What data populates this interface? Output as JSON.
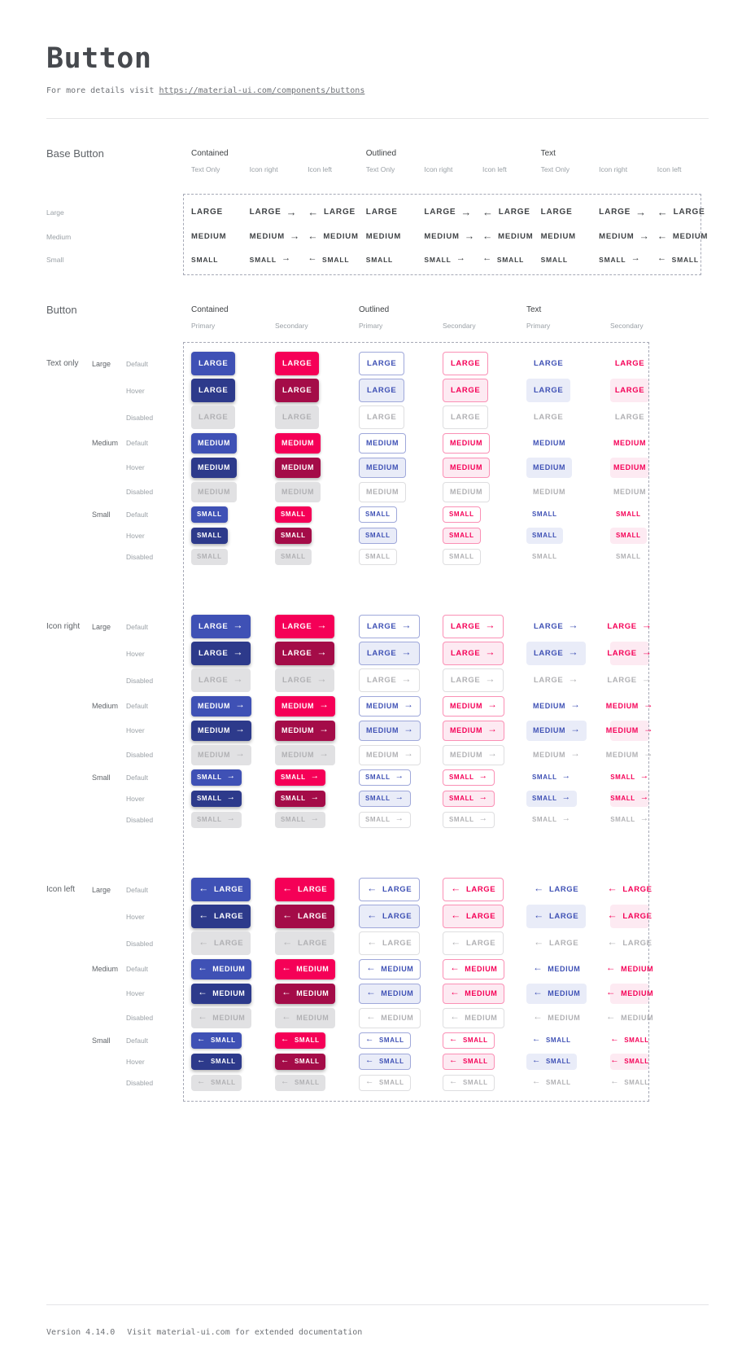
{
  "page": {
    "title": "Button",
    "subtitle_prefix": "For more details visit ",
    "subtitle_link": "https://material-ui.com/components/buttons",
    "footer": {
      "version": "Version 4.14.0",
      "note": "Visit material-ui.com for extended documentation"
    }
  },
  "icons": {
    "arrow_right": "→",
    "arrow_left": "←"
  },
  "base_section": {
    "title": "Base Button",
    "column_groups": [
      {
        "label": "Contained",
        "subcolumns": [
          {
            "label": "Text Only",
            "icon": "none"
          },
          {
            "label": "Icon right",
            "icon": "right"
          },
          {
            "label": "Icon left",
            "icon": "left"
          }
        ]
      },
      {
        "label": "Outlined",
        "subcolumns": [
          {
            "label": "Text Only",
            "icon": "none"
          },
          {
            "label": "Icon right",
            "icon": "right"
          },
          {
            "label": "Icon left",
            "icon": "left"
          }
        ]
      },
      {
        "label": "Text",
        "subcolumns": [
          {
            "label": "Text Only",
            "icon": "none"
          },
          {
            "label": "Icon right",
            "icon": "right"
          },
          {
            "label": "Icon left",
            "icon": "left"
          }
        ]
      }
    ],
    "rows": [
      {
        "size": "Large",
        "button_text": "LARGE"
      },
      {
        "size": "Medium",
        "button_text": "MEDIUM"
      },
      {
        "size": "Small",
        "button_text": "SMALL"
      }
    ]
  },
  "button_section": {
    "title": "Button",
    "columns": [
      {
        "group": "Contained",
        "subcolumn": "Primary",
        "variant": "contained",
        "color": "primary"
      },
      {
        "group": "Contained",
        "subcolumn": "Secondary",
        "variant": "contained",
        "color": "secondary"
      },
      {
        "group": "Outlined",
        "subcolumn": "Primary",
        "variant": "outlined",
        "color": "primary"
      },
      {
        "group": "Outlined",
        "subcolumn": "Secondary",
        "variant": "outlined",
        "color": "secondary"
      },
      {
        "group": "Text",
        "subcolumn": "Primary",
        "variant": "text",
        "color": "primary"
      },
      {
        "group": "Text",
        "subcolumn": "Secondary",
        "variant": "text",
        "color": "secondary"
      }
    ],
    "row_groups": [
      {
        "label": "Text only",
        "icon": "none"
      },
      {
        "label": "Icon right",
        "icon": "right"
      },
      {
        "label": "Icon left",
        "icon": "left"
      }
    ],
    "sizes": [
      {
        "label": "Large",
        "button_text": "LARGE"
      },
      {
        "label": "Medium",
        "button_text": "MEDIUM"
      },
      {
        "label": "Small",
        "button_text": "SMALL"
      }
    ],
    "states": [
      "Default",
      "Hover",
      "Disabled"
    ]
  },
  "colors": {
    "primary": "#3f51b5",
    "primary_hover": "#2d3a8b",
    "secondary": "#f50057",
    "secondary_hover": "#a40c48",
    "primary_tint": "#e9ecf8",
    "secondary_tint": "#fdeaf2",
    "outlined_primary_border": "#9fa8da",
    "outlined_secondary_border": "#fa90b5",
    "disabled_bg": "#e1e1e3",
    "disabled_text": "#b1b1b4",
    "disabled_border": "#dedee0",
    "dash": "#a6a9b6"
  }
}
